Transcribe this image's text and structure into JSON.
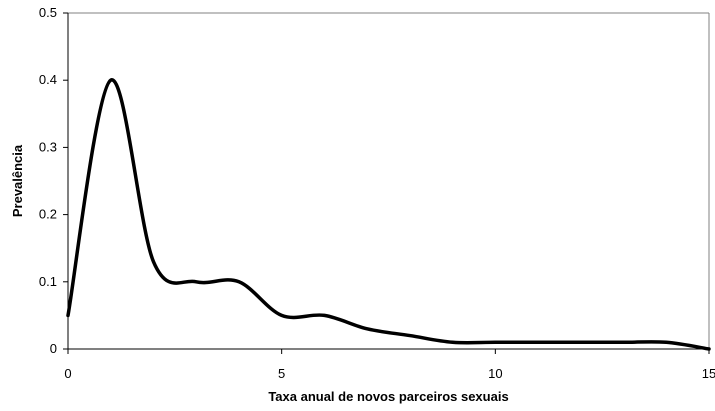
{
  "chart_data": {
    "type": "line",
    "title": "",
    "xlabel": "Taxa anual de novos parceiros sexuais",
    "ylabel": "Prevalência",
    "xlim": [
      0,
      15
    ],
    "ylim": [
      0,
      0.5
    ],
    "x_ticks": [
      0,
      5,
      10,
      15
    ],
    "x_tick_labels": [
      "0",
      "5",
      "10",
      "15"
    ],
    "y_ticks": [
      0,
      0.1,
      0.2,
      0.3,
      0.4,
      0.5
    ],
    "y_tick_labels": [
      "0",
      "0.1",
      "0.2",
      "0.3",
      "0.4",
      "0.5"
    ],
    "grid": false,
    "legend": "none",
    "series": [
      {
        "color": "#000000",
        "smooth": true,
        "x": [
          0,
          1,
          2,
          3,
          4,
          5,
          6,
          7,
          8,
          9,
          10,
          11,
          12,
          13,
          14,
          15
        ],
        "y": [
          0.05,
          0.4,
          0.13,
          0.1,
          0.1,
          0.05,
          0.05,
          0.03,
          0.02,
          0.01,
          0.01,
          0.01,
          0.01,
          0.01,
          0.01,
          0.0
        ]
      }
    ]
  }
}
